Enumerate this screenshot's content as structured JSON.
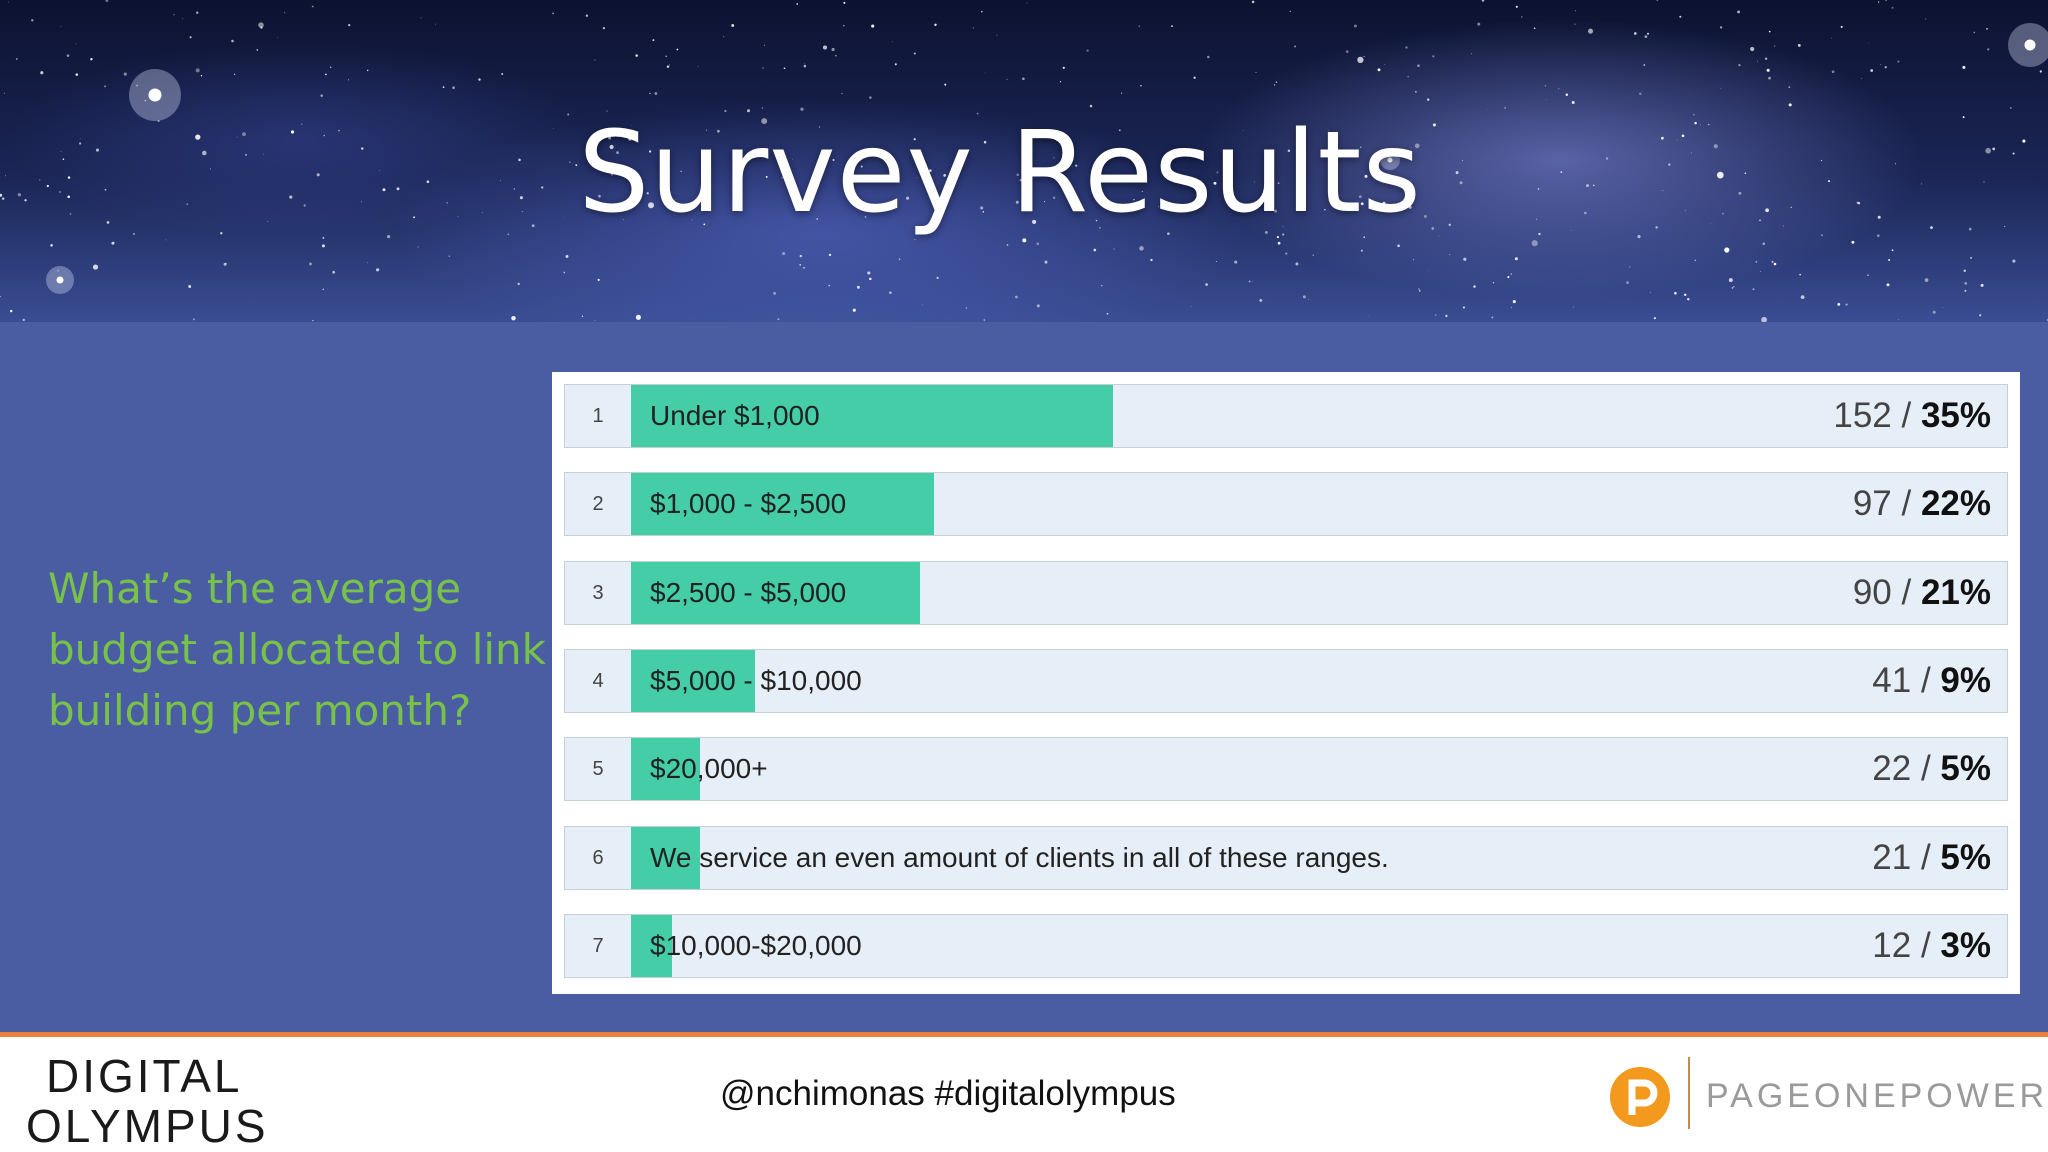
{
  "slide": {
    "title": "Survey Results",
    "question": "What’s the average budget allocated to link building per month?"
  },
  "chart_data": {
    "type": "bar",
    "orientation": "horizontal",
    "categories": [
      "Under $1,000",
      "$1,000 - $2,500",
      "$2,500 - $5,000",
      "$5,000 - $10,000",
      "$20,000+",
      "We service an even amount of clients in all of these ranges.",
      "$10,000-$20,000"
    ],
    "rows": [
      {
        "rank": "1",
        "label": "Under $1,000",
        "count": 152,
        "percent": 35,
        "count_text": "152 / ",
        "pct_text": "35%"
      },
      {
        "rank": "2",
        "label": "$1,000 - $2,500",
        "count": 97,
        "percent": 22,
        "count_text": "97 / ",
        "pct_text": "22%"
      },
      {
        "rank": "3",
        "label": "$2,500 - $5,000",
        "count": 90,
        "percent": 21,
        "count_text": "90 / ",
        "pct_text": "21%"
      },
      {
        "rank": "4",
        "label": "$5,000 - $10,000",
        "count": 41,
        "percent": 9,
        "count_text": "41 / ",
        "pct_text": "9%"
      },
      {
        "rank": "5",
        "label": "$20,000+",
        "count": 22,
        "percent": 5,
        "count_text": "22 / ",
        "pct_text": "5%"
      },
      {
        "rank": "6",
        "label": "We service an even amount of clients in all of these ranges.",
        "count": 21,
        "percent": 5,
        "count_text": "21 / ",
        "pct_text": "5%"
      },
      {
        "rank": "7",
        "label": "$10,000-$20,000",
        "count": 12,
        "percent": 3,
        "count_text": "12 / ",
        "pct_text": "3%"
      }
    ],
    "bar_color": "#44cda6"
  },
  "footer": {
    "logo_left_line1": "DIGITAL",
    "logo_left_line2": "OLYMPUS",
    "handle": "@nchimonas #digitalolympus",
    "logo_right": "PAGEONEPOWER"
  },
  "colors": {
    "background": "#4a5da3",
    "question": "#78c24a",
    "accent_orange": "#e8823a"
  }
}
